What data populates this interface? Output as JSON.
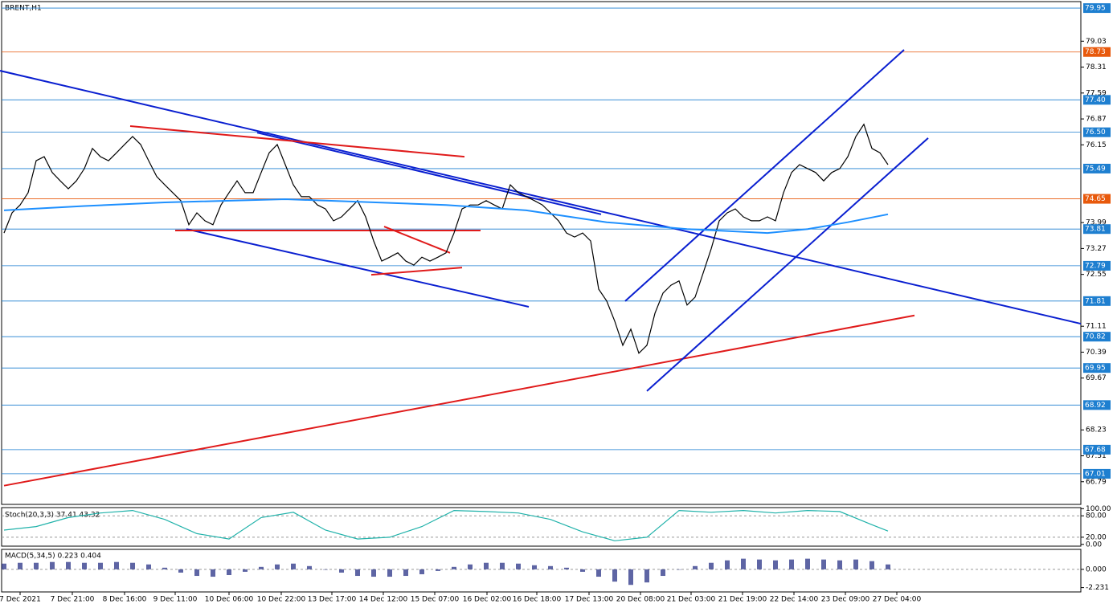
{
  "chart_data": [
    {
      "type": "line",
      "title": "BRENT,H1",
      "xlim": [
        -0.5,
        134
      ],
      "ylim": [
        66.16,
        80.13
      ],
      "xticks": [
        {
          "value": 2,
          "label": "7 Dec 2021"
        },
        {
          "value": 8.5,
          "label": "7 Dec 21:00"
        },
        {
          "value": 15,
          "label": "8 Dec 16:00"
        },
        {
          "value": 21.3,
          "label": "9 Dec 11:00"
        },
        {
          "value": 28,
          "label": "10 Dec 06:00"
        },
        {
          "value": 34.5,
          "label": "10 Dec 22:00"
        },
        {
          "value": 40.8,
          "label": "13 Dec 17:00"
        },
        {
          "value": 47.2,
          "label": "14 Dec 12:00"
        },
        {
          "value": 53.6,
          "label": "15 Dec 07:00"
        },
        {
          "value": 60.1,
          "label": "16 Dec 02:00"
        },
        {
          "value": 66.3,
          "label": "16 Dec 18:00"
        },
        {
          "value": 72.8,
          "label": "17 Dec 13:00"
        },
        {
          "value": 79.2,
          "label": "20 Dec 08:00"
        },
        {
          "value": 85.5,
          "label": "21 Dec 03:00"
        },
        {
          "value": 91.9,
          "label": "21 Dec 19:00"
        },
        {
          "value": 98.3,
          "label": "22 Dec 14:00"
        },
        {
          "value": 104.7,
          "label": "23 Dec 09:00"
        },
        {
          "value": 111.1,
          "label": "27 Dec 04:00"
        }
      ],
      "yticks": [
        79.03,
        78.31,
        77.59,
        76.87,
        76.15,
        73.99,
        73.27,
        72.55,
        71.11,
        70.39,
        69.67,
        68.23,
        67.51,
        66.79
      ],
      "levels": [
        {
          "value": 79.95,
          "color": "#1e7fd0"
        },
        {
          "value": 78.73,
          "color": "#e8590c"
        },
        {
          "value": 77.4,
          "label": "77.40",
          "color": "#1e7fd0"
        },
        {
          "value": 76.5,
          "label": "76.50",
          "color": "#1e7fd0"
        },
        {
          "value": 75.49,
          "color": "#1e7fd0"
        },
        {
          "value": 74.65,
          "color": "#e8590c"
        },
        {
          "value": 73.81,
          "color": "#1e7fd0"
        },
        {
          "value": 72.79,
          "color": "#1e7fd0"
        },
        {
          "value": 71.81,
          "color": "#1e7fd0"
        },
        {
          "value": 70.82,
          "color": "#1e7fd0"
        },
        {
          "value": 69.95,
          "color": "#1e7fd0"
        },
        {
          "value": 68.92,
          "color": "#1e7fd0"
        },
        {
          "value": 67.68,
          "color": "#1e7fd0"
        },
        {
          "value": 67.01,
          "color": "#1e7fd0"
        }
      ],
      "series": [
        {
          "color": "#000000",
          "values": [
            73.7,
            74.26,
            74.48,
            74.82,
            75.71,
            75.82,
            75.38,
            75.15,
            74.93,
            75.15,
            75.49,
            76.05,
            75.82,
            75.71,
            75.93,
            76.16,
            76.38,
            76.16,
            75.71,
            75.27,
            75.04,
            74.82,
            74.6,
            73.93,
            74.26,
            74.04,
            73.93,
            74.48,
            74.82,
            75.15,
            74.82,
            74.82,
            75.38,
            75.93,
            76.16,
            75.6,
            75.04,
            74.71,
            74.71,
            74.48,
            74.37,
            74.04,
            74.15,
            74.37,
            74.6,
            74.15,
            73.48,
            72.92,
            73.03,
            73.15,
            72.92,
            72.81,
            73.03,
            72.92,
            73.03,
            73.15,
            73.7,
            74.37,
            74.48,
            74.48,
            74.6,
            74.48,
            74.37,
            75.04,
            74.82,
            74.71,
            74.6,
            74.48,
            74.26,
            74.04,
            73.7,
            73.59,
            73.7,
            73.48,
            72.14,
            71.81,
            71.25,
            70.58,
            71.03,
            70.36,
            70.58,
            71.47,
            72.03,
            72.25,
            72.37,
            71.7,
            71.92,
            72.59,
            73.26,
            74.04,
            74.26,
            74.37,
            74.15,
            74.04,
            74.04,
            74.15,
            74.04,
            74.82,
            75.38,
            75.6,
            75.49,
            75.38,
            75.15,
            75.38,
            75.49,
            75.82,
            76.38,
            76.72,
            76.05,
            75.93,
            75.6
          ]
        },
        {
          "color": "#1e90ff",
          "x": [
            0,
            10,
            20,
            35,
            55,
            65,
            75,
            85,
            95,
            100,
            105,
            110
          ],
          "values": [
            74.33,
            74.45,
            74.55,
            74.64,
            74.48,
            74.33,
            74.0,
            73.81,
            73.7,
            73.81,
            74.0,
            74.22
          ]
        }
      ],
      "trendlines": [
        {
          "color": "#0a1fd0",
          "x": [
            -0.5,
            134
          ],
          "values": [
            78.21,
            71.18
          ]
        },
        {
          "color": "#e01b1b",
          "x": [
            0,
            113.3
          ],
          "values": [
            66.68,
            71.41
          ]
        },
        {
          "color": "#0a1fd0",
          "x": [
            80,
            115
          ],
          "values": [
            69.31,
            76.34
          ]
        },
        {
          "color": "#0a1fd0",
          "x": [
            77.3,
            112
          ],
          "values": [
            71.81,
            78.79
          ]
        },
        {
          "color": "#0a1fd0",
          "x": [
            22.7,
            65.3
          ],
          "values": [
            73.81,
            71.65
          ]
        },
        {
          "color": "#0a1fd0",
          "x": [
            31.5,
            74.3
          ],
          "values": [
            76.49,
            74.22
          ]
        },
        {
          "color": "#e01b1b",
          "x": [
            15.7,
            57.3
          ],
          "values": [
            76.67,
            75.82
          ]
        },
        {
          "color": "#e01b1b",
          "x": [
            21.3,
            59.3
          ],
          "values": [
            73.77,
            73.77
          ]
        },
        {
          "color": "#e01b1b",
          "x": [
            47.3,
            55.5
          ],
          "values": [
            73.88,
            73.15
          ]
        },
        {
          "color": "#e01b1b",
          "x": [
            45.7,
            57
          ],
          "values": [
            72.54,
            72.74
          ]
        }
      ]
    },
    {
      "type": "line",
      "title": "Stoch(20,3,3) 37.41 43.32",
      "ylim": [
        -5,
        103
      ],
      "yticks": [
        {
          "value": 100,
          "label": "100.00"
        },
        {
          "value": 80,
          "label": "80.00"
        },
        {
          "value": 20,
          "label": "20.00"
        },
        {
          "value": 0,
          "label": "0.00"
        }
      ],
      "series": [
        {
          "color": "#20b2aa",
          "x": [
            0,
            4,
            8,
            12,
            16,
            20,
            24,
            28,
            32,
            36,
            40,
            44,
            48,
            52,
            56,
            60,
            64,
            68,
            72,
            76,
            80,
            84,
            88,
            92,
            96,
            100,
            104,
            108,
            110
          ],
          "values": [
            40,
            50,
            75,
            88,
            95,
            70,
            30,
            15,
            75,
            90,
            40,
            15,
            20,
            50,
            95,
            92,
            88,
            70,
            35,
            10,
            20,
            95,
            90,
            95,
            88,
            95,
            92,
            55,
            37.41
          ]
        }
      ]
    },
    {
      "type": "bar",
      "title": "MACD(5,34,5) 0.223 0.404",
      "ylim": [
        -2.76,
        2.44
      ],
      "yticks": [
        {
          "value": 0,
          "label": "0.000"
        },
        {
          "value": -2.231,
          "label": "-2.231"
        }
      ],
      "color": "#1a237e",
      "x": [
        0,
        2,
        4,
        6,
        8,
        10,
        12,
        14,
        16,
        18,
        20,
        22,
        24,
        26,
        28,
        30,
        32,
        34,
        36,
        38,
        40,
        42,
        44,
        46,
        48,
        50,
        52,
        54,
        56,
        58,
        60,
        62,
        64,
        66,
        68,
        70,
        72,
        74,
        76,
        78,
        80,
        82,
        84,
        86,
        88,
        90,
        92,
        94,
        96,
        98,
        100,
        102,
        104,
        106,
        108,
        110
      ],
      "values": [
        0.7,
        0.8,
        0.8,
        0.9,
        0.9,
        0.8,
        0.8,
        0.9,
        0.8,
        0.6,
        0.2,
        -0.4,
        -0.8,
        -0.9,
        -0.7,
        -0.3,
        0.3,
        0.6,
        0.7,
        0.4,
        0.0,
        -0.4,
        -0.8,
        -0.9,
        -0.9,
        -0.8,
        -0.6,
        -0.2,
        0.3,
        0.6,
        0.8,
        0.8,
        0.7,
        0.5,
        0.4,
        0.2,
        -0.3,
        -0.9,
        -1.5,
        -1.9,
        -1.6,
        -0.8,
        0.0,
        0.4,
        0.8,
        1.1,
        1.3,
        1.2,
        1.1,
        1.2,
        1.3,
        1.2,
        1.1,
        1.2,
        1.0,
        0.6
      ]
    }
  ]
}
